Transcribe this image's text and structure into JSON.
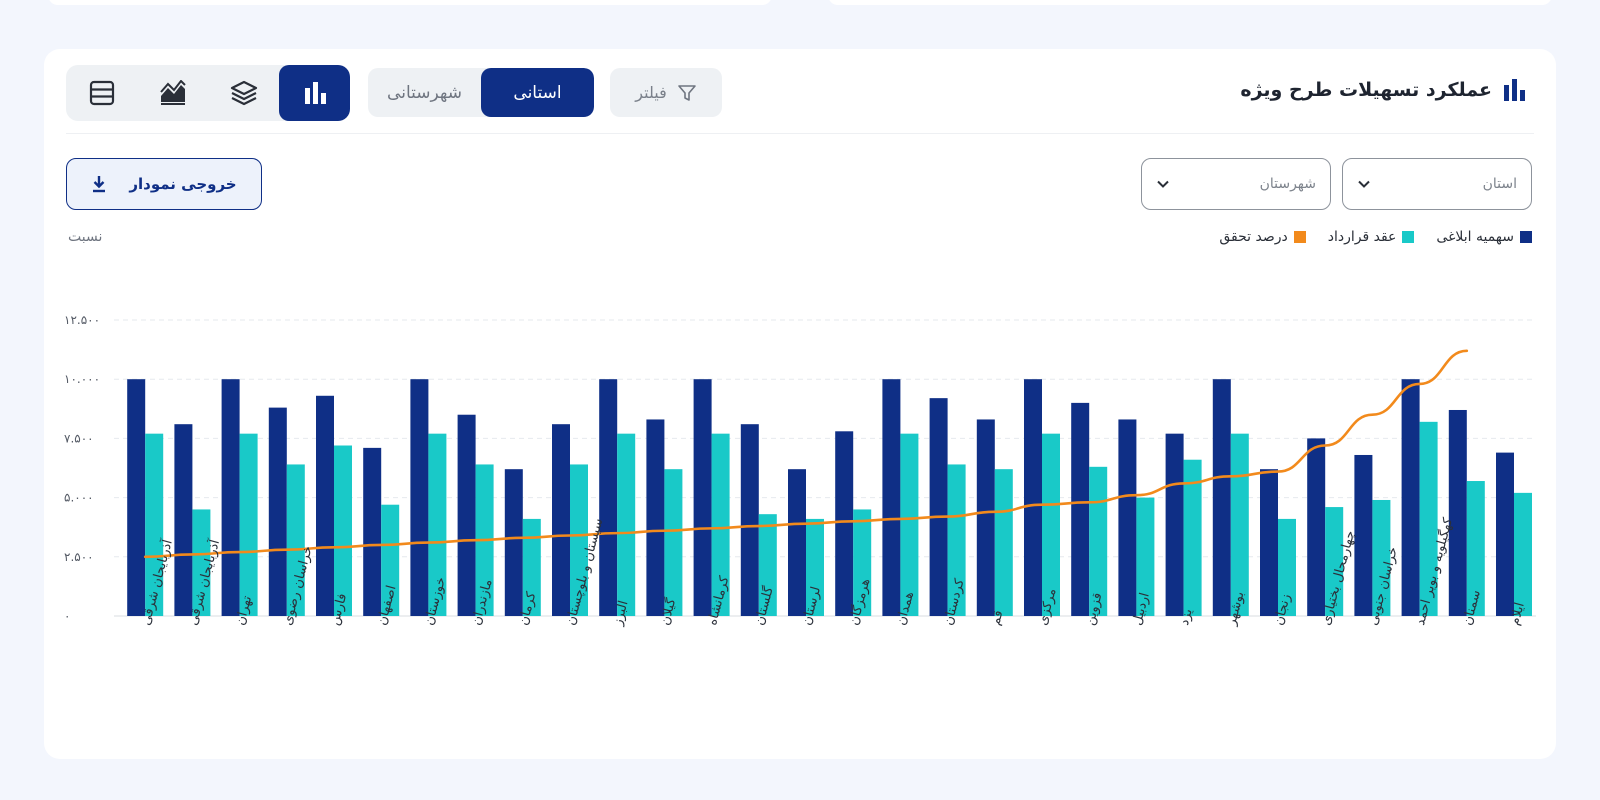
{
  "header": {
    "title": "عملکرد تسهیلات طرح ویژه"
  },
  "toolbar": {
    "filter_label": "فیلتر",
    "tabs": [
      "استانی",
      "شهرستانی"
    ],
    "active_tab": "استانی"
  },
  "filters": {
    "province_placeholder": "استان",
    "city_placeholder": "شهرستان"
  },
  "export_label": "خروجی نمودار",
  "view_icons": [
    "bar-chart-icon",
    "layers-icon",
    "area-chart-icon",
    "table-icon"
  ],
  "colors": {
    "primary": "#0f2f86",
    "secondary": "#19c9c8",
    "line": "#f28a1c"
  },
  "chart_data": {
    "type": "bar",
    "ylabel": "نسبت",
    "ylim": [
      0,
      12500
    ],
    "y_ticks": [
      "۰",
      "۲.۵۰۰",
      "۵.۰۰۰",
      "۷.۵۰۰",
      "۱۰.۰۰۰",
      "۱۲.۵۰۰"
    ],
    "y_tick_values": [
      0,
      2500,
      5000,
      7500,
      10000,
      12500
    ],
    "grid": true,
    "legend_position": "top-right",
    "categories": [
      "ایلام",
      "سمنان",
      "کهگیلویه و بویر احمد",
      "خراسان جنوبی",
      "چهارمحال بختیاری",
      "زنجان",
      "بوشهر",
      "یزد",
      "اردبیل",
      "قزوین",
      "مرکزی",
      "قم",
      "کردستان",
      "همدان",
      "هرمزگان",
      "لرستان",
      "گلستان",
      "کرمانشاه",
      "گیلان",
      "البرز",
      "سیستان و بلوچستان",
      "کرمان",
      "مازندران",
      "خوزستان",
      "اصفهان",
      "فارس",
      "خراسان رضوی",
      "تهران",
      "آذربایجان شرقی",
      "آذربایجان شرقی"
    ],
    "series": [
      {
        "name": "سهمیه ابلاغی",
        "type": "bar",
        "values": [
          6900,
          8700,
          10000,
          6800,
          7500,
          6200,
          10000,
          7700,
          8300,
          9000,
          10000,
          8300,
          9200,
          10000,
          7800,
          6200,
          8100,
          10000,
          8300,
          10000,
          8100,
          6200,
          8500,
          10000,
          7100,
          9300,
          8800,
          10000,
          8100,
          10000
        ]
      },
      {
        "name": "عقد قرارداد",
        "type": "bar",
        "values": [
          5200,
          5700,
          8200,
          4900,
          4600,
          4100,
          7700,
          6600,
          5000,
          6300,
          7700,
          6200,
          6400,
          7700,
          4500,
          4100,
          4300,
          7700,
          6200,
          7700,
          6400,
          4100,
          6400,
          7700,
          4700,
          7200,
          6400,
          7700,
          4500,
          7700
        ]
      },
      {
        "name": "درصد تحقق",
        "type": "line",
        "values": [
          null,
          11200,
          9800,
          8500,
          7200,
          6100,
          5900,
          5600,
          5100,
          4800,
          4700,
          4400,
          4200,
          4100,
          4000,
          3900,
          3800,
          3700,
          3600,
          3500,
          3400,
          3300,
          3200,
          3100,
          3000,
          2900,
          2800,
          2700,
          2600,
          2500
        ]
      }
    ]
  }
}
